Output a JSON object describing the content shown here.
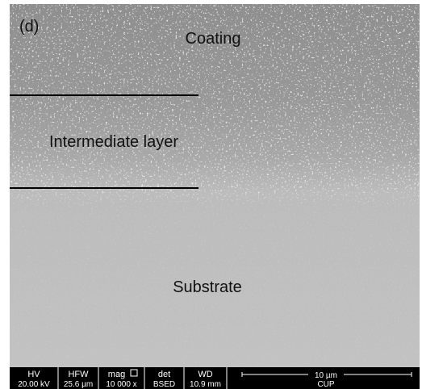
{
  "panel_label": "(d)",
  "regions": {
    "coating": "Coating",
    "intermediate": "Intermediate layer",
    "substrate": "Substrate"
  },
  "info_bar": {
    "headers": [
      "HV",
      "HFW",
      "mag",
      "det",
      "WD"
    ],
    "values": [
      "20.00 kV",
      "25.6 µm",
      "10 000 x",
      "BSED",
      "10.9 mm"
    ],
    "scale_bar": "10 µm",
    "institution": "CUP"
  }
}
